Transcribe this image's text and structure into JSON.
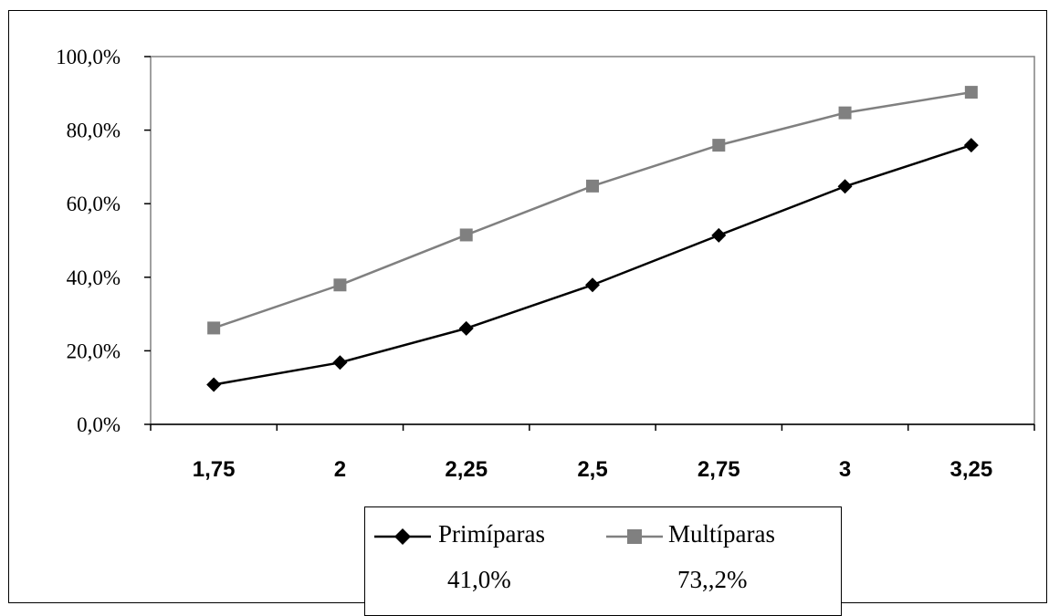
{
  "chart_data": {
    "type": "line",
    "categories": [
      "1,75",
      "2",
      "2,25",
      "2,5",
      "2,75",
      "3",
      "3,25"
    ],
    "y_ticks": [
      "0,0%",
      "20,0%",
      "40,0%",
      "60,0%",
      "80,0%",
      "100,0%"
    ],
    "ylim": [
      0,
      100
    ],
    "grid": false,
    "legend_position": "bottom",
    "series": [
      {
        "name": "Primíparas",
        "note": "41,0%",
        "color": "#000000",
        "marker": "diamond",
        "values": [
          10.8,
          16.8,
          26.1,
          37.9,
          51.4,
          64.7,
          75.9
        ]
      },
      {
        "name": "Multíparas",
        "note": "73,,2%",
        "color": "#808080",
        "marker": "square",
        "values": [
          26.2,
          37.9,
          51.5,
          64.8,
          75.9,
          84.7,
          90.3
        ]
      }
    ]
  }
}
